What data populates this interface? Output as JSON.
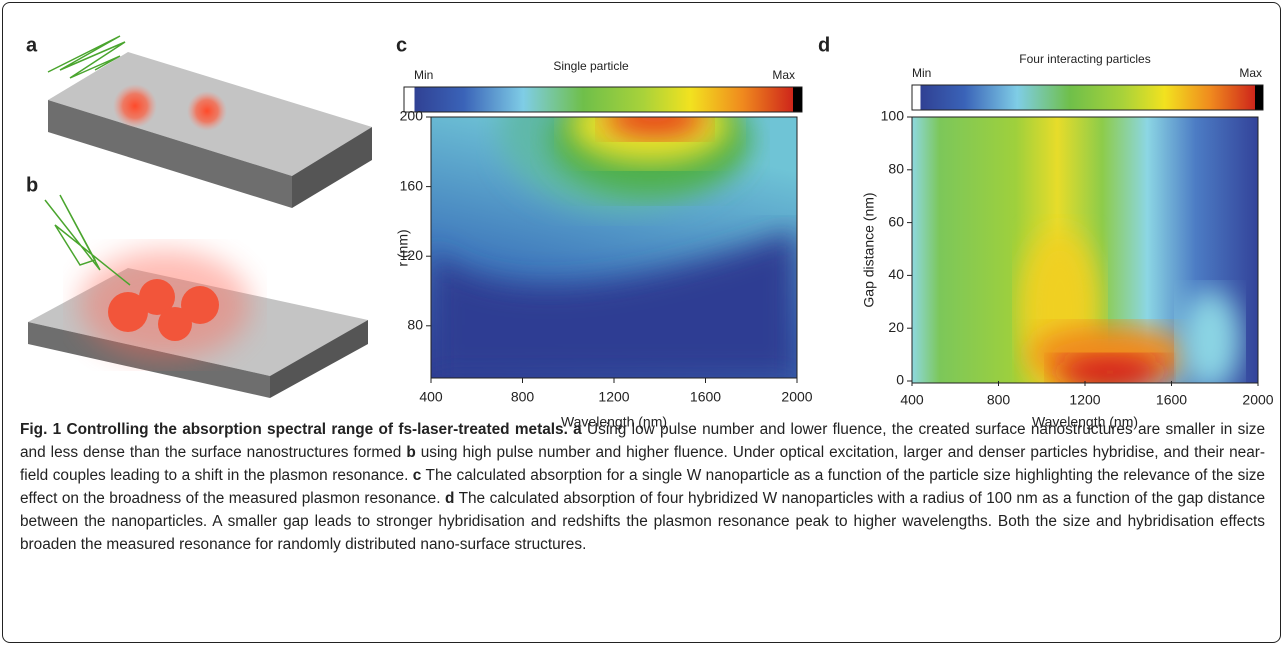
{
  "panels": {
    "a": "a",
    "b": "b"
  },
  "chart_c": {
    "label": "c",
    "title": "Single particle",
    "colorbar": {
      "min_label": "Min",
      "max_label": "Max"
    },
    "xlabel": "Wavelength (nm)",
    "ylabel": "r (nm)",
    "xlim": [
      400,
      2000
    ],
    "xticks": [
      400,
      800,
      1200,
      1600,
      2000
    ],
    "ylim": [
      50,
      200
    ],
    "yticks": [
      80,
      120,
      160,
      200
    ]
  },
  "chart_d": {
    "label": "d",
    "title": "Four interacting particles",
    "colorbar": {
      "min_label": "Min",
      "max_label": "Max"
    },
    "xlabel": "Wavelength (nm)",
    "ylabel": "Gap distance (nm)",
    "xlim": [
      400,
      2000
    ],
    "xticks": [
      400,
      800,
      1200,
      1600,
      2000
    ],
    "ylim": [
      0,
      100
    ],
    "yticks": [
      0,
      20,
      40,
      60,
      80,
      100
    ]
  },
  "caption": {
    "title": "Fig. 1 Controlling the absorption spectral range of fs-laser-treated metals.",
    "parts": [
      {
        "label": "a",
        "text": " Using low pulse number and lower fluence, the created surface nanostructures are smaller in size and less dense than the surface nanostructures formed "
      },
      {
        "label": "b",
        "text": " using high pulse number and higher fluence. Under optical excitation, larger and denser particles hybridise, and their near-field couples leading to a shift in the plasmon resonance. "
      },
      {
        "label": "c",
        "text": " The calculated absorption for a single W nanoparticle as a function of the particle size highlighting the relevance of the size effect on the broadness of the measured plasmon resonance. "
      },
      {
        "label": "d",
        "text": " The calculated absorption of four hybridized W nanoparticles with a radius of 100 nm as a function of the gap distance between the nanoparticles. A smaller gap leads to stronger hybridisation and redshifts the plasmon resonance peak to higher wavelengths. Both the size and hybridisation effects broaden the measured resonance for randomly distributed nano-surface structures."
      }
    ]
  }
}
